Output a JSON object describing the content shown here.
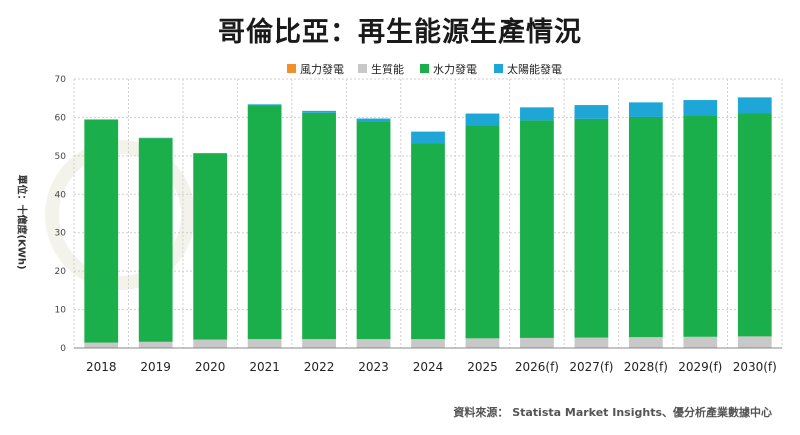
{
  "title": "哥倫比亞：再生能源生產情況",
  "source": "資料來源： Statista Market Insights、優分析產業數據中心",
  "colors": {
    "wind": "#f28e2b",
    "biomass": "#c8c8c8",
    "hydro": "#1aaf4b",
    "solar": "#1ea7d6",
    "grid": "#cfcfcf",
    "axis": "#888888"
  },
  "chart_data": {
    "type": "bar",
    "stacked": true,
    "title": "哥倫比亞：再生能源生產情況",
    "xlabel": "",
    "ylabel": "單位：十億度(KWh)",
    "ylim": [
      0,
      70
    ],
    "yticks": [
      0,
      10,
      20,
      30,
      40,
      50,
      60,
      70
    ],
    "grid": true,
    "legend_position": "top-center",
    "categories": [
      "2018",
      "2019",
      "2020",
      "2021",
      "2022",
      "2023",
      "2024",
      "2025",
      "2026(f)",
      "2027(f)",
      "2028(f)",
      "2029(f)",
      "2030(f)"
    ],
    "series": [
      {
        "name": "風力發電",
        "color_key": "wind",
        "values": [
          0.01,
          0.01,
          0.01,
          0.01,
          0.01,
          0.01,
          0.01,
          0.01,
          0.02,
          0.02,
          0.02,
          0.02,
          0.02
        ]
      },
      {
        "name": "生質能",
        "color_key": "biomass",
        "values": [
          1.4,
          1.6,
          2.2,
          2.3,
          2.3,
          2.3,
          2.3,
          2.5,
          2.6,
          2.7,
          2.8,
          2.9,
          3.0
        ]
      },
      {
        "name": "水力發電",
        "color_key": "hydro",
        "values": [
          58.0,
          53.0,
          48.4,
          60.9,
          58.9,
          56.5,
          50.9,
          55.4,
          56.6,
          56.9,
          57.3,
          57.6,
          58.0
        ]
      },
      {
        "name": "太陽能發電",
        "color_key": "solar",
        "values": [
          0.1,
          0.1,
          0.1,
          0.2,
          0.5,
          0.9,
          3.1,
          3.1,
          3.4,
          3.6,
          3.8,
          4.0,
          4.2
        ]
      }
    ]
  }
}
